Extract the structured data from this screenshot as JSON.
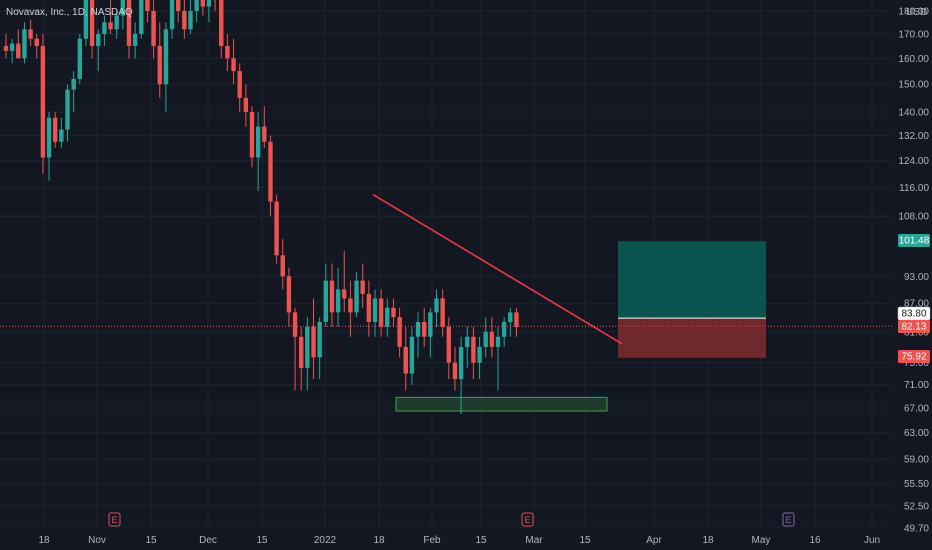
{
  "symbol_title": "Novavax, Inc., 1D, NASDAQ",
  "currency": "USD",
  "colors": {
    "background": "#131722",
    "grid": "#1f2330",
    "up": "#26a69a",
    "down": "#ef5350",
    "trendline": "#f23645",
    "axis_text": "#b2b5be",
    "profit_zone": "#0b5a54",
    "loss_zone": "#7a2a2c",
    "support_zone": "#1d3b2a",
    "support_border": "#43a047",
    "earnings": "#e24c5c",
    "earnings_muted": "#8e63a8"
  },
  "chart_data": {
    "type": "candlestick",
    "y_scale": "log",
    "yticks": [
      "180.00",
      "170.00",
      "160.00",
      "150.00",
      "140.00",
      "132.00",
      "124.00",
      "116.00",
      "108.00",
      "93.00",
      "87.00",
      "81.00",
      "75.00",
      "71.00",
      "67.00",
      "63.00",
      "59.00",
      "55.50",
      "52.50",
      "49.70"
    ],
    "xticks": [
      "18",
      "Nov",
      "15",
      "Dec",
      "15",
      "2022",
      "18",
      "Feb",
      "15",
      "Mar",
      "15",
      "Apr",
      "18",
      "May",
      "16",
      "Jun"
    ],
    "price_tags": [
      {
        "value": "101.48",
        "color": "#26a69a"
      },
      {
        "value": "83.80",
        "color": "#ffffff"
      },
      {
        "value": "82.13",
        "color": "#ef5350"
      },
      {
        "value": "75.92",
        "color": "#ef5350"
      }
    ],
    "last_price": 82.13,
    "position": {
      "entry": 83.8,
      "target": 101.48,
      "stop": 75.92
    },
    "support_zone": {
      "low": 66.5,
      "high": 68.8
    },
    "trendline": [
      {
        "t": 44,
        "price": 114
      },
      {
        "t": 86,
        "price": 81
      }
    ],
    "earnings": [
      {
        "label": "E",
        "t": 7,
        "muted": false
      },
      {
        "label": "E",
        "t": 75,
        "muted": false
      },
      {
        "label": "E",
        "t": 112,
        "muted": true
      }
    ],
    "candles": [
      {
        "o": 165,
        "h": 170,
        "l": 160,
        "c": 163
      },
      {
        "o": 163,
        "h": 168,
        "l": 158,
        "c": 166
      },
      {
        "o": 166,
        "h": 172,
        "l": 160,
        "c": 160
      },
      {
        "o": 160,
        "h": 175,
        "l": 158,
        "c": 172
      },
      {
        "o": 172,
        "h": 176,
        "l": 165,
        "c": 168
      },
      {
        "o": 168,
        "h": 170,
        "l": 160,
        "c": 165
      },
      {
        "o": 165,
        "h": 170,
        "l": 120,
        "c": 125
      },
      {
        "o": 125,
        "h": 140,
        "l": 118,
        "c": 138
      },
      {
        "o": 138,
        "h": 140,
        "l": 128,
        "c": 130
      },
      {
        "o": 130,
        "h": 138,
        "l": 128,
        "c": 134
      },
      {
        "o": 134,
        "h": 150,
        "l": 130,
        "c": 148
      },
      {
        "o": 148,
        "h": 155,
        "l": 140,
        "c": 152
      },
      {
        "o": 152,
        "h": 170,
        "l": 150,
        "c": 168
      },
      {
        "o": 168,
        "h": 190,
        "l": 165,
        "c": 185
      },
      {
        "o": 185,
        "h": 190,
        "l": 160,
        "c": 165
      },
      {
        "o": 165,
        "h": 172,
        "l": 155,
        "c": 170
      },
      {
        "o": 170,
        "h": 178,
        "l": 165,
        "c": 175
      },
      {
        "o": 175,
        "h": 185,
        "l": 170,
        "c": 172
      },
      {
        "o": 172,
        "h": 180,
        "l": 168,
        "c": 178
      },
      {
        "o": 178,
        "h": 190,
        "l": 172,
        "c": 185
      },
      {
        "o": 185,
        "h": 190,
        "l": 160,
        "c": 165
      },
      {
        "o": 165,
        "h": 175,
        "l": 160,
        "c": 170
      },
      {
        "o": 170,
        "h": 190,
        "l": 168,
        "c": 185
      },
      {
        "o": 185,
        "h": 190,
        "l": 175,
        "c": 180
      },
      {
        "o": 180,
        "h": 190,
        "l": 160,
        "c": 165
      },
      {
        "o": 165,
        "h": 175,
        "l": 145,
        "c": 150
      },
      {
        "o": 150,
        "h": 175,
        "l": 140,
        "c": 172
      },
      {
        "o": 172,
        "h": 190,
        "l": 168,
        "c": 185
      },
      {
        "o": 185,
        "h": 190,
        "l": 175,
        "c": 180
      },
      {
        "o": 180,
        "h": 190,
        "l": 168,
        "c": 172
      },
      {
        "o": 172,
        "h": 185,
        "l": 170,
        "c": 180
      },
      {
        "o": 180,
        "h": 190,
        "l": 175,
        "c": 185
      },
      {
        "o": 185,
        "h": 190,
        "l": 178,
        "c": 182
      },
      {
        "o": 182,
        "h": 190,
        "l": 175,
        "c": 188
      },
      {
        "o": 188,
        "h": 190,
        "l": 180,
        "c": 185
      },
      {
        "o": 185,
        "h": 188,
        "l": 160,
        "c": 165
      },
      {
        "o": 165,
        "h": 170,
        "l": 155,
        "c": 160
      },
      {
        "o": 160,
        "h": 168,
        "l": 150,
        "c": 155
      },
      {
        "o": 155,
        "h": 158,
        "l": 140,
        "c": 145
      },
      {
        "o": 145,
        "h": 150,
        "l": 135,
        "c": 140
      },
      {
        "o": 140,
        "h": 142,
        "l": 122,
        "c": 125
      },
      {
        "o": 125,
        "h": 140,
        "l": 115,
        "c": 135
      },
      {
        "o": 135,
        "h": 142,
        "l": 128,
        "c": 130
      },
      {
        "o": 130,
        "h": 132,
        "l": 108,
        "c": 112
      },
      {
        "o": 112,
        "h": 114,
        "l": 96,
        "c": 98
      },
      {
        "o": 98,
        "h": 102,
        "l": 90,
        "c": 93
      },
      {
        "o": 93,
        "h": 95,
        "l": 82,
        "c": 85
      },
      {
        "o": 85,
        "h": 86,
        "l": 70,
        "c": 80
      },
      {
        "o": 80,
        "h": 82,
        "l": 70,
        "c": 74
      },
      {
        "o": 74,
        "h": 84,
        "l": 70,
        "c": 82
      },
      {
        "o": 82,
        "h": 88,
        "l": 72,
        "c": 76
      },
      {
        "o": 76,
        "h": 84,
        "l": 72,
        "c": 83
      },
      {
        "o": 83,
        "h": 96,
        "l": 82,
        "c": 92
      },
      {
        "o": 92,
        "h": 96,
        "l": 82,
        "c": 85
      },
      {
        "o": 85,
        "h": 95,
        "l": 82,
        "c": 90
      },
      {
        "o": 90,
        "h": 99,
        "l": 85,
        "c": 88
      },
      {
        "o": 88,
        "h": 92,
        "l": 80,
        "c": 85
      },
      {
        "o": 85,
        "h": 94,
        "l": 84,
        "c": 92
      },
      {
        "o": 92,
        "h": 96,
        "l": 86,
        "c": 89
      },
      {
        "o": 89,
        "h": 92,
        "l": 80,
        "c": 83
      },
      {
        "o": 83,
        "h": 90,
        "l": 80,
        "c": 88
      },
      {
        "o": 88,
        "h": 90,
        "l": 80,
        "c": 82
      },
      {
        "o": 82,
        "h": 88,
        "l": 80,
        "c": 86
      },
      {
        "o": 86,
        "h": 88,
        "l": 82,
        "c": 84
      },
      {
        "o": 84,
        "h": 86,
        "l": 76,
        "c": 78
      },
      {
        "o": 78,
        "h": 82,
        "l": 70,
        "c": 73
      },
      {
        "o": 73,
        "h": 82,
        "l": 71,
        "c": 80
      },
      {
        "o": 80,
        "h": 85,
        "l": 76,
        "c": 83
      },
      {
        "o": 83,
        "h": 86,
        "l": 78,
        "c": 80
      },
      {
        "o": 80,
        "h": 86,
        "l": 76,
        "c": 85
      },
      {
        "o": 85,
        "h": 90,
        "l": 82,
        "c": 88
      },
      {
        "o": 88,
        "h": 90,
        "l": 80,
        "c": 82
      },
      {
        "o": 82,
        "h": 84,
        "l": 72,
        "c": 75
      },
      {
        "o": 75,
        "h": 78,
        "l": 70,
        "c": 72
      },
      {
        "o": 72,
        "h": 80,
        "l": 66,
        "c": 78
      },
      {
        "o": 78,
        "h": 82,
        "l": 74,
        "c": 80
      },
      {
        "o": 80,
        "h": 82,
        "l": 72,
        "c": 75
      },
      {
        "o": 75,
        "h": 80,
        "l": 72,
        "c": 78
      },
      {
        "o": 78,
        "h": 84,
        "l": 76,
        "c": 81
      },
      {
        "o": 81,
        "h": 84,
        "l": 76,
        "c": 78
      },
      {
        "o": 78,
        "h": 82,
        "l": 70,
        "c": 80
      },
      {
        "o": 80,
        "h": 84,
        "l": 78,
        "c": 83
      },
      {
        "o": 83,
        "h": 86,
        "l": 80,
        "c": 85
      },
      {
        "o": 85,
        "h": 86,
        "l": 80,
        "c": 82
      }
    ]
  }
}
